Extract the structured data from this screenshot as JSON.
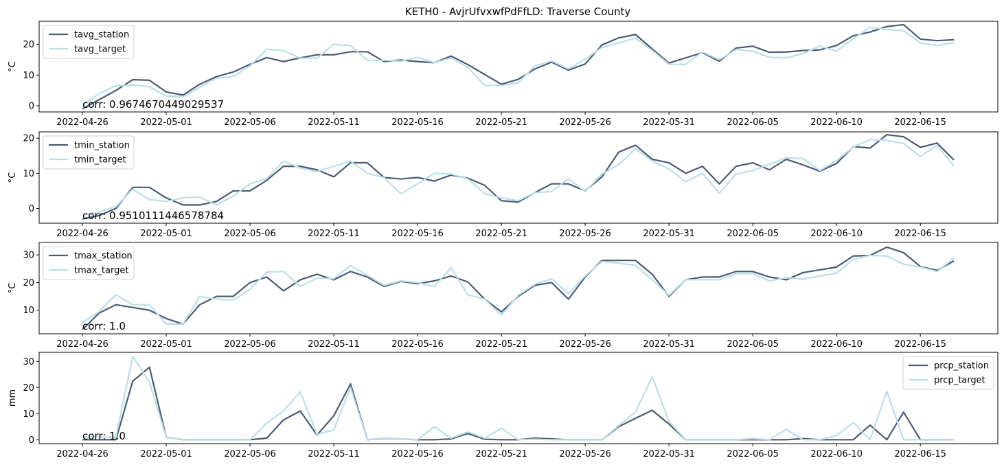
{
  "figure_title": "KETH0 - AvjrUfvxwfPdFfLD: Traverse County",
  "colors": {
    "station": "#4a5a75",
    "target": "#b9dfe9"
  },
  "chart_data": [
    {
      "type": "line",
      "ylabel": "°C",
      "ylim": [
        -2,
        27.5
      ],
      "yticks": [
        0,
        10,
        20
      ],
      "legend_position": "upper-left",
      "annotation": "corr: 0.9674670449029537",
      "xtick_labels": [
        "2022-04-26",
        "2022-05-01",
        "2022-05-06",
        "2022-05-11",
        "2022-05-16",
        "2022-05-21",
        "2022-05-26",
        "2022-05-31",
        "2022-06-05",
        "2022-06-10",
        "2022-06-15"
      ],
      "series": [
        {
          "name": "tavg_station",
          "role": "station",
          "values": [
            -1.0,
            2.0,
            5.0,
            8.5,
            8.3,
            4.5,
            3.5,
            7.0,
            9.5,
            11.0,
            13.5,
            15.7,
            14.4,
            15.6,
            16.6,
            16.6,
            17.6,
            17.6,
            14.4,
            14.9,
            14.4,
            14.0,
            16.2,
            13.4,
            10.2,
            7.0,
            8.6,
            12.0,
            14.2,
            11.6,
            13.6,
            19.8,
            22.1,
            23.2,
            18.5,
            13.9,
            15.6,
            17.3,
            14.5,
            18.8,
            19.4,
            17.4,
            17.5,
            18.0,
            18.2,
            19.6,
            22.8,
            24.0,
            25.8,
            26.4,
            21.7,
            21.2,
            21.5
          ]
        },
        {
          "name": "tavg_target",
          "role": "target",
          "values": [
            0.0,
            4.0,
            6.5,
            6.8,
            6.2,
            3.2,
            3.0,
            6.0,
            9.0,
            9.5,
            13.0,
            18.4,
            18.0,
            15.5,
            15.5,
            20.0,
            19.6,
            14.8,
            14.8,
            14.5,
            15.8,
            14.0,
            15.6,
            12.5,
            6.6,
            6.6,
            7.5,
            13.0,
            14.6,
            12.0,
            15.2,
            19.0,
            20.5,
            22.0,
            18.0,
            13.5,
            13.5,
            17.5,
            15.0,
            18.3,
            17.8,
            15.8,
            15.6,
            17.0,
            19.4,
            17.8,
            21.8,
            25.6,
            24.8,
            24.4,
            20.5,
            19.6,
            20.6
          ]
        }
      ]
    },
    {
      "type": "line",
      "ylabel": "°C",
      "ylim": [
        -4.2,
        21.8
      ],
      "yticks": [
        0,
        10,
        20
      ],
      "legend_position": "upper-left",
      "annotation": "corr: 0.9510111446578784",
      "xtick_labels": [
        "2022-04-26",
        "2022-05-01",
        "2022-05-06",
        "2022-05-11",
        "2022-05-16",
        "2022-05-21",
        "2022-05-26",
        "2022-05-31",
        "2022-06-05",
        "2022-06-10",
        "2022-06-15"
      ],
      "series": [
        {
          "name": "tmin_station",
          "role": "station",
          "values": [
            -3.0,
            -2.0,
            0.0,
            6.0,
            6.0,
            3.0,
            1.0,
            1.0,
            2.0,
            5.0,
            5.0,
            8.0,
            12.0,
            12.0,
            11.0,
            9.0,
            13.0,
            13.0,
            8.8,
            8.4,
            8.8,
            7.8,
            9.5,
            8.6,
            6.6,
            2.2,
            1.8,
            4.5,
            7.0,
            7.0,
            5.0,
            9.0,
            16.0,
            18.0,
            14.0,
            13.0,
            10.0,
            12.0,
            7.0,
            12.0,
            13.0,
            11.0,
            14.0,
            12.4,
            10.6,
            12.8,
            17.6,
            17.2,
            21.0,
            20.4,
            17.4,
            18.6,
            13.8
          ]
        },
        {
          "name": "tmin_target",
          "role": "target",
          "values": [
            -1.8,
            -1.0,
            0.5,
            5.5,
            2.5,
            2.0,
            3.0,
            3.2,
            1.0,
            3.5,
            7.0,
            8.5,
            13.4,
            11.5,
            10.5,
            12.0,
            13.5,
            10.0,
            8.8,
            4.2,
            7.0,
            10.0,
            9.8,
            8.4,
            4.2,
            3.0,
            2.2,
            4.5,
            4.8,
            8.5,
            4.8,
            9.8,
            12.5,
            17.0,
            13.5,
            11.2,
            7.6,
            10.0,
            4.3,
            9.8,
            10.8,
            12.6,
            14.4,
            14.2,
            10.8,
            13.6,
            17.5,
            19.6,
            19.4,
            18.5,
            14.8,
            18.0,
            12.0
          ]
        }
      ]
    },
    {
      "type": "line",
      "ylabel": "°C",
      "ylim": [
        1.5,
        34.5
      ],
      "yticks": [
        10,
        20,
        30
      ],
      "legend_position": "upper-left",
      "annotation": "corr: 1.0",
      "xtick_labels": [
        "2022-04-26",
        "2022-05-01",
        "2022-05-06",
        "2022-05-11",
        "2022-05-16",
        "2022-05-21",
        "2022-05-26",
        "2022-05-31",
        "2022-06-05",
        "2022-06-10",
        "2022-06-15"
      ],
      "series": [
        {
          "name": "tmax_station",
          "role": "station",
          "values": [
            3.0,
            9.0,
            12.0,
            11.0,
            10.0,
            7.0,
            5.0,
            12.0,
            15.0,
            15.0,
            20.0,
            22.0,
            17.0,
            21.0,
            23.0,
            21.0,
            24.0,
            22.0,
            18.6,
            20.4,
            19.6,
            20.6,
            22.4,
            20.2,
            14.0,
            9.4,
            15.0,
            19.0,
            20.0,
            14.0,
            22.0,
            28.0,
            28.0,
            28.0,
            23.0,
            15.0,
            21.0,
            22.0,
            22.0,
            24.0,
            24.0,
            22.0,
            21.0,
            23.6,
            24.6,
            25.6,
            29.6,
            29.8,
            32.8,
            30.8,
            25.8,
            24.4,
            27.8
          ]
        },
        {
          "name": "tmax_target",
          "role": "target",
          "values": [
            5.5,
            9.5,
            15.6,
            12.0,
            12.0,
            5.0,
            5.0,
            15.0,
            14.0,
            13.6,
            17.6,
            23.8,
            24.0,
            18.6,
            21.6,
            21.4,
            26.2,
            22.6,
            19.0,
            20.6,
            20.0,
            18.6,
            25.4,
            15.6,
            14.0,
            8.2,
            15.4,
            19.4,
            21.4,
            16.0,
            22.4,
            27.6,
            27.0,
            26.2,
            21.0,
            15.4,
            21.0,
            21.0,
            21.0,
            23.2,
            23.2,
            20.6,
            21.8,
            21.2,
            22.4,
            23.4,
            28.4,
            29.8,
            29.6,
            26.6,
            25.6,
            24.0,
            28.8
          ]
        }
      ]
    },
    {
      "type": "line",
      "ylabel": "mm",
      "ylim": [
        -1.5,
        33.5
      ],
      "yticks": [
        0,
        10,
        20,
        30
      ],
      "legend_position": "upper-right",
      "annotation": "corr: 1.0",
      "xtick_labels": [
        "2022-04-26",
        "2022-05-01",
        "2022-05-06",
        "2022-05-11",
        "2022-05-16",
        "2022-05-21",
        "2022-05-26",
        "2022-05-31",
        "2022-06-05",
        "2022-06-10",
        "2022-06-15"
      ],
      "series": [
        {
          "name": "prcp_station",
          "role": "station",
          "values": [
            0.0,
            0.0,
            0.0,
            22.4,
            27.8,
            1.0,
            0.0,
            0.0,
            0.0,
            0.0,
            0.0,
            0.6,
            7.6,
            11.0,
            1.8,
            9.2,
            21.4,
            0.0,
            0.5,
            0.3,
            0.0,
            0.0,
            0.3,
            2.4,
            0.2,
            0.0,
            0.0,
            0.6,
            0.3,
            0.0,
            0.0,
            0.0,
            5.0,
            8.2,
            11.3,
            6.0,
            0.0,
            0.0,
            0.0,
            0.0,
            0.0,
            0.0,
            0.0,
            0.4,
            0.0,
            0.0,
            0.0,
            5.6,
            0.0,
            10.6,
            0.0,
            0.0,
            0.0
          ]
        },
        {
          "name": "prcp_target",
          "role": "target",
          "values": [
            1.0,
            1.0,
            1.0,
            32.0,
            22.0,
            1.0,
            0.0,
            0.0,
            0.0,
            0.0,
            0.0,
            6.4,
            11.0,
            18.4,
            2.0,
            3.8,
            20.0,
            0.0,
            0.6,
            0.3,
            0.0,
            5.0,
            0.6,
            3.0,
            0.6,
            4.4,
            0.0,
            0.2,
            0.0,
            0.0,
            0.0,
            0.0,
            5.4,
            10.6,
            24.2,
            7.0,
            0.0,
            0.0,
            0.0,
            0.0,
            0.4,
            0.0,
            4.0,
            0.0,
            0.0,
            1.6,
            6.6,
            0.0,
            18.6,
            0.0,
            0.0,
            0.0,
            0.0
          ]
        }
      ]
    }
  ]
}
